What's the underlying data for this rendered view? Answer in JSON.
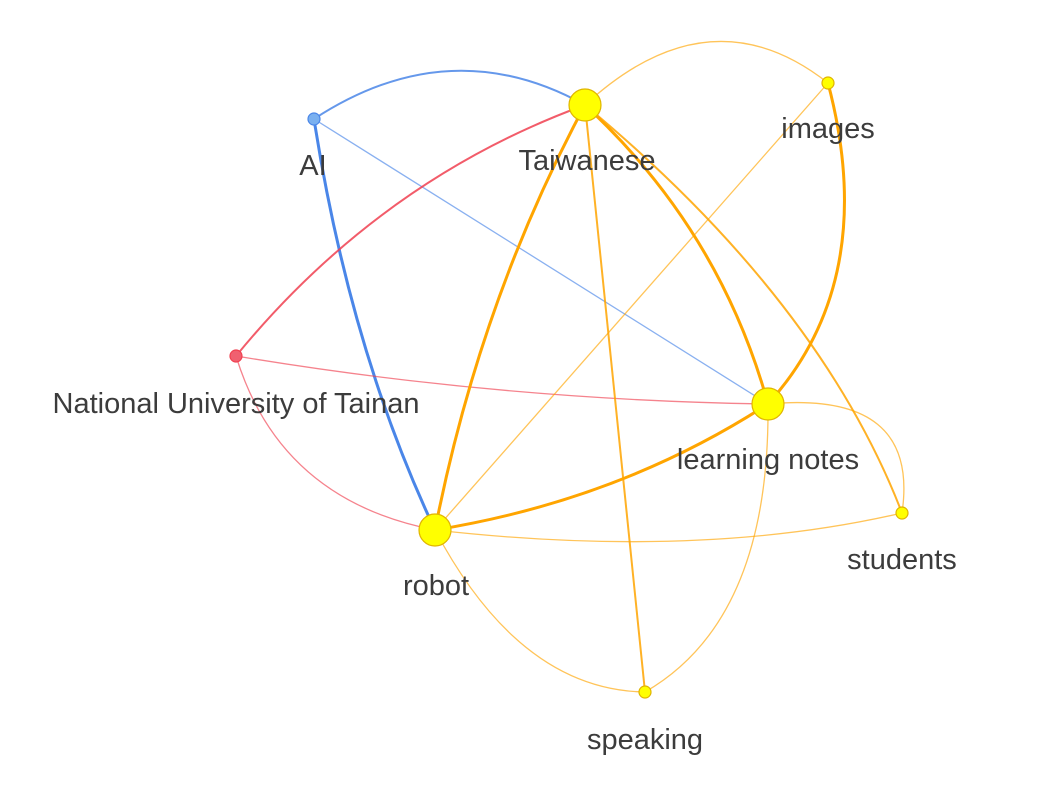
{
  "colors": {
    "orange": "#FFA500",
    "blue": "#4A86E8",
    "red": "#F04050",
    "yellow_fill": "#FFFF00",
    "yellow_stroke": "#E0B400",
    "blue_fill": "#7AB0F0",
    "red_fill": "#F06070",
    "label": "#3c3c3c"
  },
  "nodes": [
    {
      "id": "taiwanese",
      "label": "Taiwanese",
      "color": "yellow",
      "size": "large"
    },
    {
      "id": "ai",
      "label": "AI",
      "color": "blue",
      "size": "small"
    },
    {
      "id": "images",
      "label": "images",
      "color": "yellow",
      "size": "small"
    },
    {
      "id": "ntu",
      "label": "National University of Tainan",
      "color": "red",
      "size": "small"
    },
    {
      "id": "learning_notes",
      "label": "learning notes",
      "color": "yellow",
      "size": "large"
    },
    {
      "id": "robot",
      "label": "robot",
      "color": "yellow",
      "size": "large"
    },
    {
      "id": "students",
      "label": "students",
      "color": "yellow",
      "size": "small"
    },
    {
      "id": "speaking",
      "label": "speaking",
      "color": "yellow",
      "size": "small"
    }
  ],
  "edges": [
    {
      "source": "ai",
      "target": "taiwanese",
      "color": "blue",
      "weight": "medium"
    },
    {
      "source": "ai",
      "target": "robot",
      "color": "blue",
      "weight": "heavy"
    },
    {
      "source": "ai",
      "target": "learning_notes",
      "color": "blue",
      "weight": "light"
    },
    {
      "source": "ntu",
      "target": "taiwanese",
      "color": "red",
      "weight": "medium"
    },
    {
      "source": "ntu",
      "target": "learning_notes",
      "color": "red",
      "weight": "light"
    },
    {
      "source": "ntu",
      "target": "robot",
      "color": "red",
      "weight": "light"
    },
    {
      "source": "taiwanese",
      "target": "images",
      "color": "orange",
      "weight": "light"
    },
    {
      "source": "taiwanese",
      "target": "robot",
      "color": "orange",
      "weight": "heavy"
    },
    {
      "source": "taiwanese",
      "target": "learning_notes",
      "color": "orange",
      "weight": "heavy"
    },
    {
      "source": "taiwanese",
      "target": "speaking",
      "color": "orange",
      "weight": "medium"
    },
    {
      "source": "taiwanese",
      "target": "students",
      "color": "orange",
      "weight": "medium"
    },
    {
      "source": "images",
      "target": "learning_notes",
      "color": "orange",
      "weight": "heavy"
    },
    {
      "source": "images",
      "target": "robot",
      "color": "orange",
      "weight": "light"
    },
    {
      "source": "robot",
      "target": "learning_notes",
      "color": "orange",
      "weight": "heavy"
    },
    {
      "source": "robot",
      "target": "students",
      "color": "orange",
      "weight": "light"
    },
    {
      "source": "robot",
      "target": "speaking",
      "color": "orange",
      "weight": "light"
    },
    {
      "source": "learning_notes",
      "target": "students",
      "color": "orange",
      "weight": "light"
    },
    {
      "source": "learning_notes",
      "target": "speaking",
      "color": "orange",
      "weight": "light"
    }
  ]
}
